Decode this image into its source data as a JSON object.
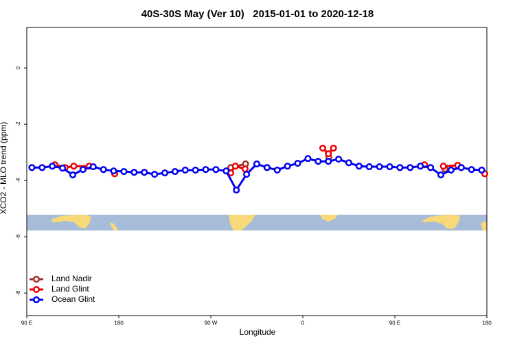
{
  "chart_data": {
    "type": "line",
    "title": "40S-30S May (Ver 10)   2015-01-01 to 2020-12-18",
    "x_label": "Longitude",
    "y_label": "XCO2 - MLO trend (ppm)",
    "xlim": [
      90,
      540
    ],
    "ylim": [
      -8.8,
      1.44
    ],
    "xticks": [
      {
        "value": 90,
        "label": "90 E"
      },
      180,
      {
        "value": 270,
        "label": "90 W"
      },
      {
        "value": 360,
        "label": "0"
      },
      {
        "value": 450,
        "label": "90 E"
      },
      {
        "value": 540,
        "label": "180"
      }
    ],
    "yticks": [
      0,
      -2,
      -4,
      -6,
      -8
    ],
    "grid": false,
    "legend": "lower left",
    "series": [
      {
        "name": "Land Nadir",
        "color": "#a03030",
        "x": [
          125,
          289.5,
          304,
          385.5,
          499
        ],
        "values": [
          -3.56,
          -3.54,
          -3.41,
          -3.17,
          -3.59
        ]
      },
      {
        "name": "Land Glint",
        "color": "#ee0000",
        "x": [
          117.5,
          127.5,
          136,
          151,
          176,
          289.5,
          294,
          303.5,
          379.5,
          385,
          390,
          479,
          497.5,
          511.5,
          538
        ],
        "values": [
          -3.44,
          -3.54,
          -3.49,
          -3.49,
          -3.76,
          -3.73,
          -3.49,
          -3.59,
          -2.85,
          -3.05,
          -2.85,
          -3.44,
          -3.49,
          -3.46,
          -3.76
        ]
      },
      {
        "name": "Ocean Glint",
        "color": "#0000ee",
        "x": [
          95,
          105,
          115,
          125,
          135,
          145,
          155,
          165,
          175,
          185,
          195,
          205,
          215,
          225,
          235,
          245,
          255,
          265,
          275,
          285,
          295,
          305,
          315,
          325,
          335,
          345,
          355,
          365,
          375,
          385,
          395,
          405,
          415,
          425,
          435,
          445,
          455,
          465,
          475,
          485,
          495,
          505,
          515,
          525,
          535
        ],
        "values": [
          -3.54,
          -3.54,
          -3.49,
          -3.56,
          -3.8,
          -3.61,
          -3.51,
          -3.61,
          -3.66,
          -3.68,
          -3.71,
          -3.71,
          -3.78,
          -3.73,
          -3.68,
          -3.63,
          -3.63,
          -3.61,
          -3.61,
          -3.66,
          -4.34,
          -3.78,
          -3.41,
          -3.54,
          -3.63,
          -3.49,
          -3.39,
          -3.22,
          -3.32,
          -3.32,
          -3.24,
          -3.37,
          -3.49,
          -3.51,
          -3.51,
          -3.51,
          -3.54,
          -3.54,
          -3.49,
          -3.54,
          -3.8,
          -3.63,
          -3.54,
          -3.61,
          -3.63
        ]
      }
    ]
  }
}
